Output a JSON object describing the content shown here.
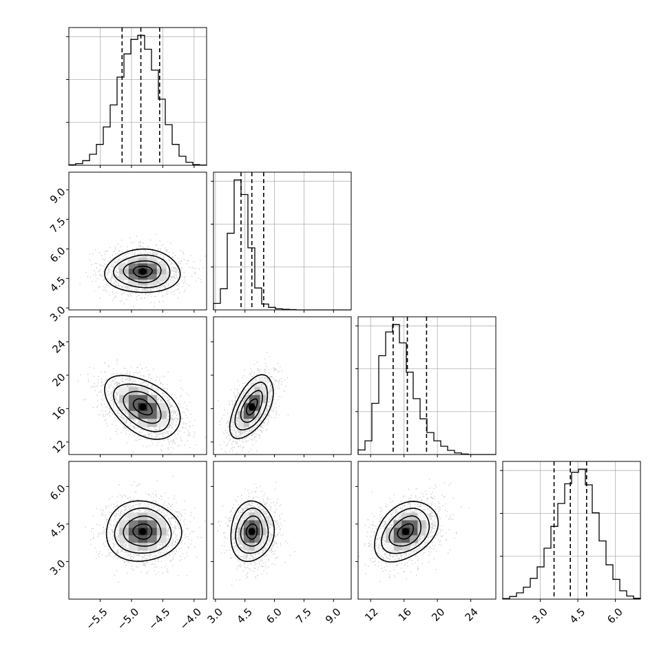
{
  "chart_data": {
    "type": "corner",
    "title": "",
    "params": [
      {
        "range": [
          -6.0,
          -3.8
        ],
        "ticks": [
          -5.5,
          -5.0,
          -4.5,
          -4.0
        ],
        "tick_labels": [
          "−5.5",
          "−5.0",
          "−4.5",
          "−4.0"
        ],
        "quantiles": [
          -5.15,
          -4.85,
          -4.55
        ],
        "center": -4.82,
        "sd": 0.3,
        "hist_max": 1120
      },
      {
        "range": [
          2.9,
          9.9
        ],
        "ticks": [
          3.0,
          4.5,
          6.0,
          7.5,
          9.0
        ],
        "tick_labels": [
          "3.0",
          "4.5",
          "6.0",
          "7.5",
          "9.0"
        ],
        "quantiles": [
          4.3,
          4.85,
          5.45
        ],
        "center": 4.85,
        "sd": 0.55,
        "hist_max": 1780
      },
      {
        "range": [
          10.5,
          27.0
        ],
        "ticks": [
          12,
          16,
          20,
          24
        ],
        "tick_labels": [
          "12",
          "16",
          "20",
          "24"
        ],
        "quantiles": [
          14.7,
          16.4,
          18.7
        ],
        "center": 16.2,
        "sd": 1.9,
        "hist_max": 1420
      },
      {
        "range": [
          1.5,
          7.0
        ],
        "ticks": [
          3.0,
          4.5,
          6.0
        ],
        "tick_labels": [
          "3.0",
          "4.5",
          "6.0"
        ],
        "quantiles": [
          3.55,
          4.2,
          4.85
        ],
        "center": 4.2,
        "sd": 0.6,
        "hist_max": 1250
      }
    ],
    "correlations": [
      [
        1,
        0,
        -0.45,
        0
      ],
      [
        0,
        1,
        0.55,
        0.08
      ],
      [
        -0.45,
        0.55,
        1,
        0.35
      ],
      [
        0,
        0.08,
        0.35,
        1
      ]
    ],
    "hist_counts": [
      [
        4,
        14,
        40,
        95,
        180,
        330,
        520,
        760,
        960,
        1085,
        1120,
        1000,
        820,
        570,
        350,
        180,
        78,
        26,
        6,
        2
      ],
      [
        90,
        290,
        1050,
        1780,
        1580,
        850,
        300,
        80,
        35,
        15,
        8,
        5,
        0,
        0,
        0,
        0,
        0,
        0,
        0,
        0
      ],
      [
        50,
        150,
        560,
        1080,
        1340,
        1420,
        1220,
        900,
        610,
        390,
        240,
        150,
        90,
        45,
        18,
        5,
        0,
        0,
        0,
        0
      ],
      [
        5,
        25,
        60,
        115,
        200,
        310,
        490,
        700,
        920,
        1110,
        1220,
        1250,
        1100,
        830,
        560,
        330,
        190,
        80,
        30,
        8
      ]
    ],
    "contour_levels": [
      0.118,
      0.393,
      0.675,
      0.865
    ],
    "hist_grid": true,
    "scatter_grid": false,
    "y_tick_labels_on_left_column": true,
    "x_tick_labels_on_bottom_row": true
  }
}
